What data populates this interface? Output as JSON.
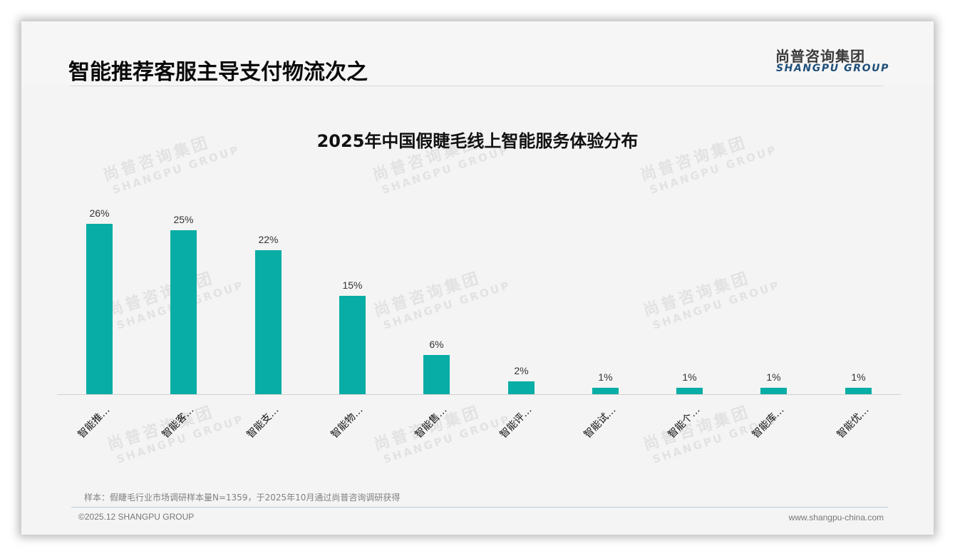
{
  "header": {
    "page_title": "智能推荐客服主导支付物流次之",
    "logo_cn": "尚普咨询集团",
    "logo_en": "SHANGPU GROUP"
  },
  "watermark": {
    "cn": "尚普咨询集团",
    "en": "SHANGPU GROUP"
  },
  "chart_data": {
    "type": "bar",
    "title": "2025年中国假睫毛线上智能服务体验分布",
    "categories": [
      "智能推…",
      "智能客…",
      "智能支…",
      "智能物…",
      "智能售…",
      "智能评…",
      "智能试…",
      "智能个…",
      "智能库…",
      "智能优…"
    ],
    "values": [
      26,
      25,
      22,
      15,
      6,
      2,
      1,
      1,
      1,
      1
    ],
    "value_labels": [
      "26%",
      "25%",
      "22%",
      "15%",
      "6%",
      "2%",
      "1%",
      "1%",
      "1%",
      "1%"
    ],
    "xlabel": "",
    "ylabel": "",
    "unit": "%",
    "ylim": [
      0,
      28
    ],
    "grid": false,
    "legend": null,
    "bar_color": "#08ada5"
  },
  "footer": {
    "note": "样本：假睫毛行业市场调研样本量N=1359，于2025年10月通过尚普咨询调研获得",
    "copyright": "©2025.12 SHANGPU GROUP",
    "website": "www.shangpu-china.com"
  }
}
